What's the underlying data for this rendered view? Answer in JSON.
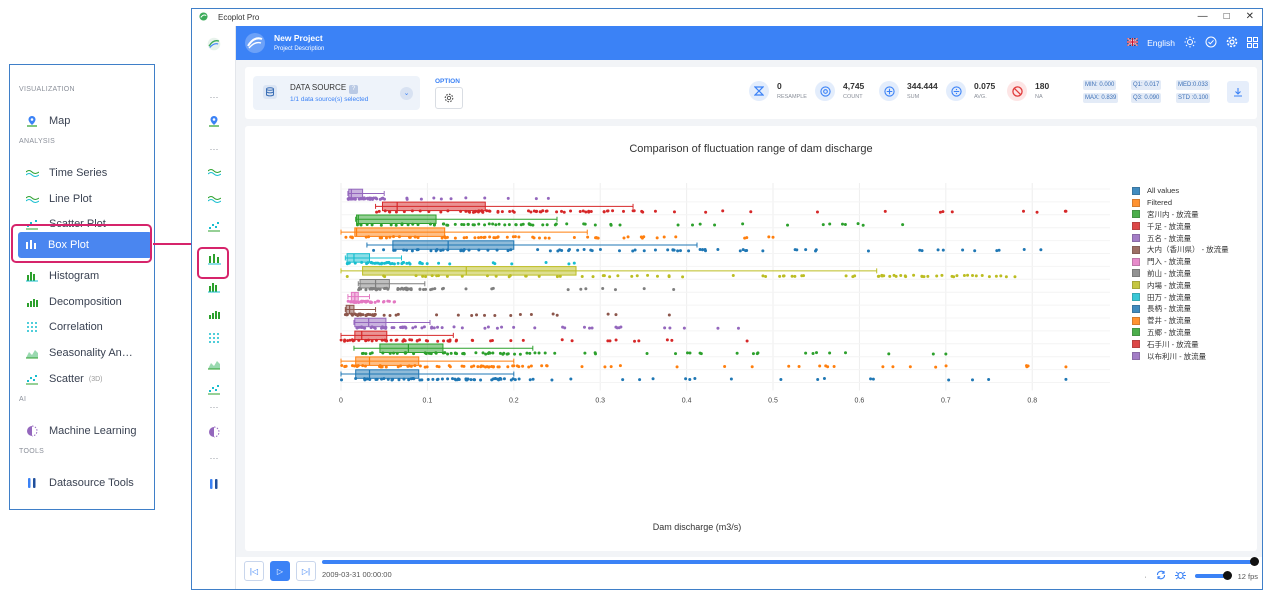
{
  "menu": {
    "sections": [
      {
        "label": "VISUALIZATION",
        "items": [
          {
            "label": "Map",
            "icon": "map-pin-icon"
          }
        ]
      },
      {
        "label": "ANALYSIS",
        "items": [
          {
            "label": "Time Series",
            "icon": "wave-icon"
          },
          {
            "label": "Line Plot",
            "icon": "wave-icon"
          },
          {
            "label": "Scatter Plot",
            "icon": "scatter-icon"
          },
          {
            "label": "Box Plot",
            "icon": "box-plot-icon",
            "active": true
          },
          {
            "label": "Histogram",
            "icon": "histogram-icon"
          },
          {
            "label": "Decomposition",
            "icon": "bars-icon"
          },
          {
            "label": "Correlation",
            "icon": "grid-dots-icon"
          },
          {
            "label": "Seasonality An…",
            "icon": "area-chart-icon"
          },
          {
            "label": "Scatter",
            "badge": "(3D)",
            "icon": "scatter-icon"
          }
        ]
      },
      {
        "label": "AI",
        "items": [
          {
            "label": "Machine Learning",
            "icon": "brain-icon"
          }
        ]
      },
      {
        "label": "TOOLS",
        "items": [
          {
            "label": "Datasource Tools",
            "icon": "tools-icon"
          }
        ]
      }
    ]
  },
  "window": {
    "title": "Ecoplot Pro",
    "controls": [
      "—",
      "□",
      "✕"
    ]
  },
  "header": {
    "project_title": "New Project",
    "project_desc": "Project Description",
    "language": "English"
  },
  "toolbar": {
    "datasource_title": "DATA SOURCE",
    "datasource_help": "?",
    "datasource_sub": "1/1 data source(s) selected",
    "option_label": "OPTION",
    "stats": [
      {
        "value": "0",
        "label": "RESAMPLE",
        "icon": "resample-icon",
        "color": "#3b82f6",
        "bg": "#e3edfc"
      },
      {
        "value": "4,745",
        "label": "COUNT",
        "icon": "target-icon",
        "color": "#3b82f6",
        "bg": "#e3edfc"
      },
      {
        "value": "344.444",
        "label": "SUM",
        "icon": "plus-circle-icon",
        "color": "#3b82f6",
        "bg": "#e3edfc"
      },
      {
        "value": "0.075",
        "label": "AVG.",
        "icon": "divide-icon",
        "color": "#3b82f6",
        "bg": "#e3edfc"
      },
      {
        "value": "180",
        "label": "NA",
        "icon": "ban-icon",
        "color": "#e03a3a",
        "bg": "#fde5e5"
      }
    ],
    "quartiles": {
      "min": "MIN: 0.000",
      "max": "MAX: 0.839",
      "q1": "Q1:",
      "q1v": "0.017",
      "q3": "Q3:",
      "q3v": "0.090",
      "med": "MED:0.033",
      "std": "STD :0.100"
    }
  },
  "chart_data": {
    "type": "box",
    "orientation": "horizontal",
    "title": "Comparison of fluctuation range of dam discharge",
    "xlabel": "Dam discharge (m3/s)",
    "ylabel": "",
    "xlim": [
      0,
      0.89
    ],
    "x_ticks": [
      0,
      0.1,
      0.2,
      0.3,
      0.4,
      0.5,
      0.6,
      0.7,
      0.8
    ],
    "x_tick_labels": [
      "0",
      "0.1",
      "0.2",
      "0.3",
      "0.4",
      "0.5",
      "0.6",
      "0.7",
      "0.8"
    ],
    "grid": true,
    "legend_position": "right",
    "series": [
      {
        "name": "All values",
        "color": "#1f77b4",
        "whisker_low": 0.0,
        "q1": 0.017,
        "median": 0.033,
        "q3": 0.09,
        "whisker_high": 0.2,
        "outlier_max": 0.839
      },
      {
        "name": "Filtered",
        "color": "#ff7f0e",
        "whisker_low": 0.0,
        "q1": 0.017,
        "median": 0.033,
        "q3": 0.09,
        "whisker_high": 0.2,
        "outlier_max": 0.839
      },
      {
        "name": "宮川内 - 放流量",
        "color": "#2ca02c",
        "whisker_low": 0.015,
        "q1": 0.045,
        "median": 0.078,
        "q3": 0.118,
        "whisker_high": 0.222,
        "outlier_max": 0.7
      },
      {
        "name": "千足 - 放流量",
        "color": "#d62728",
        "whisker_low": 0.0,
        "q1": 0.016,
        "median": 0.024,
        "q3": 0.053,
        "whisker_high": 0.13,
        "outlier_max": 0.47
      },
      {
        "name": "五名 - 放流量",
        "color": "#9467bd",
        "whisker_low": 0.015,
        "q1": 0.016,
        "median": 0.032,
        "q3": 0.052,
        "whisker_high": 0.103,
        "outlier_max": 0.46
      },
      {
        "name": "大内（香川県） - 放流量",
        "color": "#8c564b",
        "whisker_low": 0.005,
        "q1": 0.006,
        "median": 0.01,
        "q3": 0.015,
        "whisker_high": 0.04,
        "outlier_max": 0.38
      },
      {
        "name": "門入 - 放流量",
        "color": "#e377c2",
        "whisker_low": 0.008,
        "q1": 0.012,
        "median": 0.016,
        "q3": 0.02,
        "whisker_high": 0.033,
        "outlier_max": 0.062
      },
      {
        "name": "前山 - 放流量",
        "color": "#7f7f7f",
        "whisker_low": 0.02,
        "q1": 0.022,
        "median": 0.04,
        "q3": 0.056,
        "whisker_high": 0.097,
        "outlier_max": 0.385
      },
      {
        "name": "内場 - 放流量",
        "color": "#bcbd22",
        "whisker_low": 0.0,
        "q1": 0.025,
        "median": 0.145,
        "q3": 0.272,
        "whisker_high": 0.62,
        "outlier_max": 0.78
      },
      {
        "name": "田万 - 放流量",
        "color": "#17becf",
        "whisker_low": 0.005,
        "q1": 0.007,
        "median": 0.015,
        "q3": 0.033,
        "whisker_high": 0.07,
        "outlier_max": 0.27
      },
      {
        "name": "長柄 - 放流量",
        "color": "#1f77b4",
        "whisker_low": 0.03,
        "q1": 0.06,
        "median": 0.124,
        "q3": 0.2,
        "whisker_high": 0.412,
        "outlier_max": 0.81
      },
      {
        "name": "菅井 - 放流量",
        "color": "#ff7f0e",
        "whisker_low": 0.0,
        "q1": 0.016,
        "median": 0.018,
        "q3": 0.12,
        "whisker_high": 0.285,
        "outlier_max": 0.5
      },
      {
        "name": "五郷 - 放流量",
        "color": "#2ca02c",
        "whisker_low": 0.017,
        "q1": 0.018,
        "median": 0.02,
        "q3": 0.11,
        "whisker_high": 0.25,
        "outlier_max": 0.65
      },
      {
        "name": "石手川 - 放流量",
        "color": "#d62728",
        "whisker_low": 0.04,
        "q1": 0.048,
        "median": 0.065,
        "q3": 0.167,
        "whisker_high": 0.338,
        "outlier_max": 0.839
      },
      {
        "name": "以布利川 - 放流量",
        "color": "#9467bd",
        "whisker_low": 0.008,
        "q1": 0.009,
        "median": 0.012,
        "q3": 0.025,
        "whisker_high": 0.05,
        "outlier_max": 0.24
      }
    ]
  },
  "player": {
    "timestamp": "2009-03-31 00:00:00",
    "fps": "12 fps"
  }
}
